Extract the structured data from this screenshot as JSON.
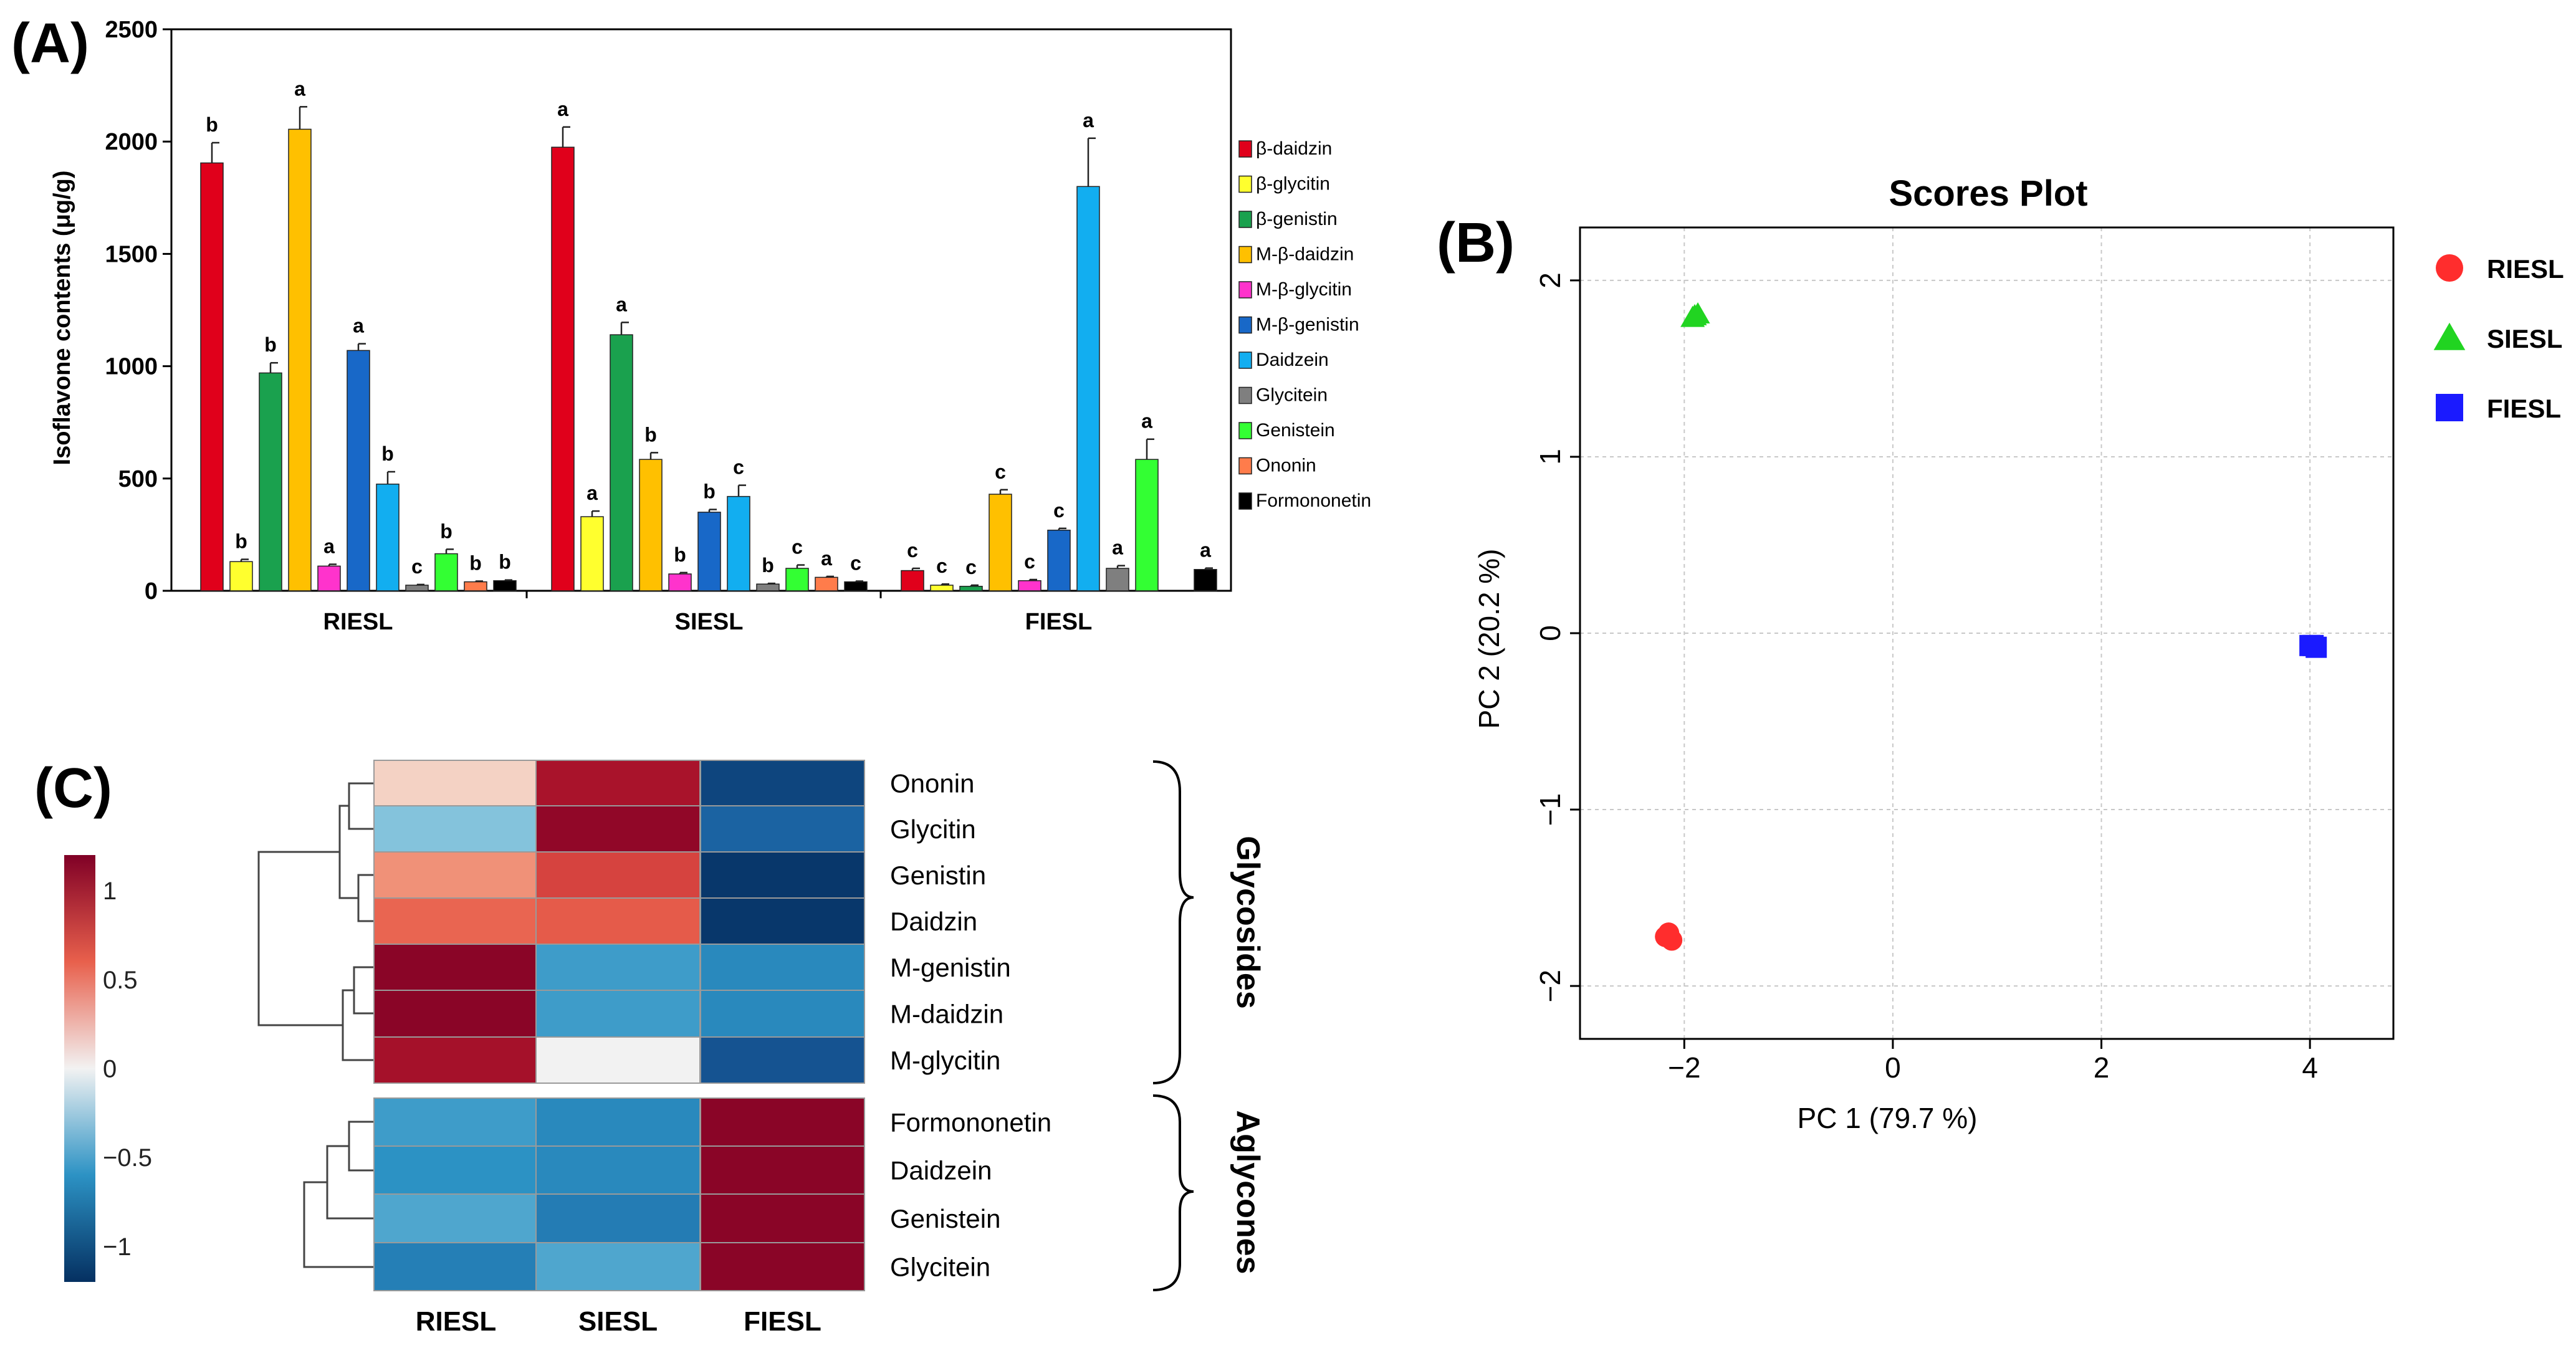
{
  "panels": {
    "a": "(A)",
    "b": "(B)",
    "c": "(C)"
  },
  "chart_data": [
    {
      "type": "bar",
      "title": "",
      "ylabel": "Isoflavone contents (μg/g)",
      "xlabel": "",
      "ylim": [
        0,
        2500
      ],
      "yticks": [
        0,
        500,
        1000,
        1500,
        2000,
        2500
      ],
      "categories": [
        "RIESL",
        "SIESL",
        "FIESL"
      ],
      "series": [
        {
          "name": "β-daidzin",
          "color": "#e0001b",
          "values": [
            1905,
            1975,
            90
          ],
          "errors": [
            90,
            90,
            10
          ],
          "letters": [
            "b",
            "a",
            "c"
          ]
        },
        {
          "name": "β-glycitin",
          "color": "#ffff2e",
          "values": [
            130,
            330,
            25
          ],
          "errors": [
            10,
            25,
            5
          ],
          "letters": [
            "b",
            "a",
            "c"
          ]
        },
        {
          "name": "β-genistin",
          "color": "#1aa14e",
          "values": [
            970,
            1140,
            20
          ],
          "errors": [
            45,
            55,
            5
          ],
          "letters": [
            "b",
            "a",
            "c"
          ]
        },
        {
          "name": "M-β-daidzin",
          "color": "#ffc000",
          "values": [
            2055,
            585,
            430
          ],
          "errors": [
            100,
            30,
            20
          ],
          "letters": [
            "a",
            "b",
            "c"
          ]
        },
        {
          "name": "M-β-glycitin",
          "color": "#ff33cc",
          "values": [
            110,
            75,
            45
          ],
          "errors": [
            8,
            6,
            5
          ],
          "letters": [
            "a",
            "b",
            "c"
          ]
        },
        {
          "name": "M-β-genistin",
          "color": "#1868c8",
          "values": [
            1070,
            350,
            270
          ],
          "errors": [
            30,
            12,
            8
          ],
          "letters": [
            "a",
            "b",
            "c"
          ]
        },
        {
          "name": "Daidzein",
          "color": "#12aef0",
          "values": [
            475,
            420,
            1800
          ],
          "errors": [
            55,
            50,
            215
          ],
          "letters": [
            "b",
            "c",
            "a"
          ]
        },
        {
          "name": "Glycitein",
          "color": "#7f7f7f",
          "values": [
            25,
            30,
            100
          ],
          "errors": [
            3,
            3,
            12
          ],
          "letters": [
            "c",
            "b",
            "a"
          ]
        },
        {
          "name": "Genistein",
          "color": "#33ff33",
          "values": [
            165,
            100,
            585
          ],
          "errors": [
            20,
            15,
            90
          ],
          "letters": [
            "b",
            "c",
            "a"
          ]
        },
        {
          "name": "Ononin",
          "color": "#ff7c4b",
          "values": [
            40,
            60,
            0
          ],
          "errors": [
            3,
            4,
            0
          ],
          "letters": [
            "b",
            "a",
            ""
          ]
        },
        {
          "name": "Formononetin",
          "color": "#000000",
          "values": [
            45,
            40,
            95
          ],
          "errors": [
            3,
            3,
            6
          ],
          "letters": [
            "b",
            "c",
            "a"
          ]
        }
      ]
    },
    {
      "type": "scatter",
      "title": "Scores Plot",
      "xlabel": "PC 1 (79.7 %)",
      "ylabel": "PC 2 (20.2 %)",
      "xlim": [
        -3,
        4.8
      ],
      "ylim": [
        -2.3,
        2.3
      ],
      "xticks": [
        -2,
        0,
        2,
        4
      ],
      "yticks": [
        -2,
        -1,
        0,
        1,
        2
      ],
      "grid": true,
      "legend_position": "right",
      "series": [
        {
          "name": "RIESL",
          "shape": "circle",
          "color": "#ff2d2d",
          "points": [
            [
              -2.15,
              -1.7
            ],
            [
              -2.12,
              -1.74
            ],
            [
              -2.18,
              -1.72
            ]
          ]
        },
        {
          "name": "SIESL",
          "shape": "triangle",
          "color": "#21d421",
          "points": [
            [
              -1.9,
              1.8
            ],
            [
              -1.87,
              1.81
            ],
            [
              -1.92,
              1.79
            ]
          ]
        },
        {
          "name": "FIESL",
          "shape": "square",
          "color": "#1a1aff",
          "points": [
            [
              4.03,
              -0.07
            ],
            [
              4.06,
              -0.08
            ],
            [
              4.0,
              -0.07
            ]
          ]
        }
      ]
    },
    {
      "type": "heatmap",
      "columns": [
        "RIESL",
        "SIESL",
        "FIESL"
      ],
      "rows": [
        "Ononin",
        "Glycitin",
        "Genistin",
        "Daidzin",
        "M-genistin",
        "M-daidzin",
        "M-glycitin",
        "Formononetin",
        "Daidzein",
        "Genistein",
        "Glycitein"
      ],
      "values": [
        [
          0.15,
          1.0,
          -1.05
        ],
        [
          -0.35,
          1.12,
          -0.85
        ],
        [
          0.42,
          0.73,
          -1.15
        ],
        [
          0.58,
          0.62,
          -1.15
        ],
        [
          1.15,
          -0.55,
          -0.65
        ],
        [
          1.15,
          -0.55,
          -0.65
        ],
        [
          1.02,
          0.0,
          -0.95
        ],
        [
          -0.55,
          -0.65,
          1.15
        ],
        [
          -0.6,
          -0.65,
          1.15
        ],
        [
          -0.5,
          -0.72,
          1.15
        ],
        [
          -0.7,
          -0.5,
          1.15
        ]
      ],
      "groups": [
        {
          "label": "Glycosides",
          "rows": [
            "Ononin",
            "Glycitin",
            "Genistin",
            "Daidzin",
            "M-genistin",
            "M-daidzin",
            "M-glycitin"
          ]
        },
        {
          "label": "Aglycones",
          "rows": [
            "Formononetin",
            "Daidzein",
            "Genistein",
            "Glycitein"
          ]
        }
      ],
      "colorbar": {
        "min": -1.2,
        "max": 1.2,
        "ticks": [
          1,
          0.5,
          0,
          -0.5,
          -1
        ],
        "tick_labels": [
          "1",
          "0.5",
          "0",
          "−0.5",
          "−1"
        ],
        "colors": {
          "low": "#053061",
          "mid": "#f2f2f2",
          "high": "#800026"
        }
      }
    }
  ]
}
